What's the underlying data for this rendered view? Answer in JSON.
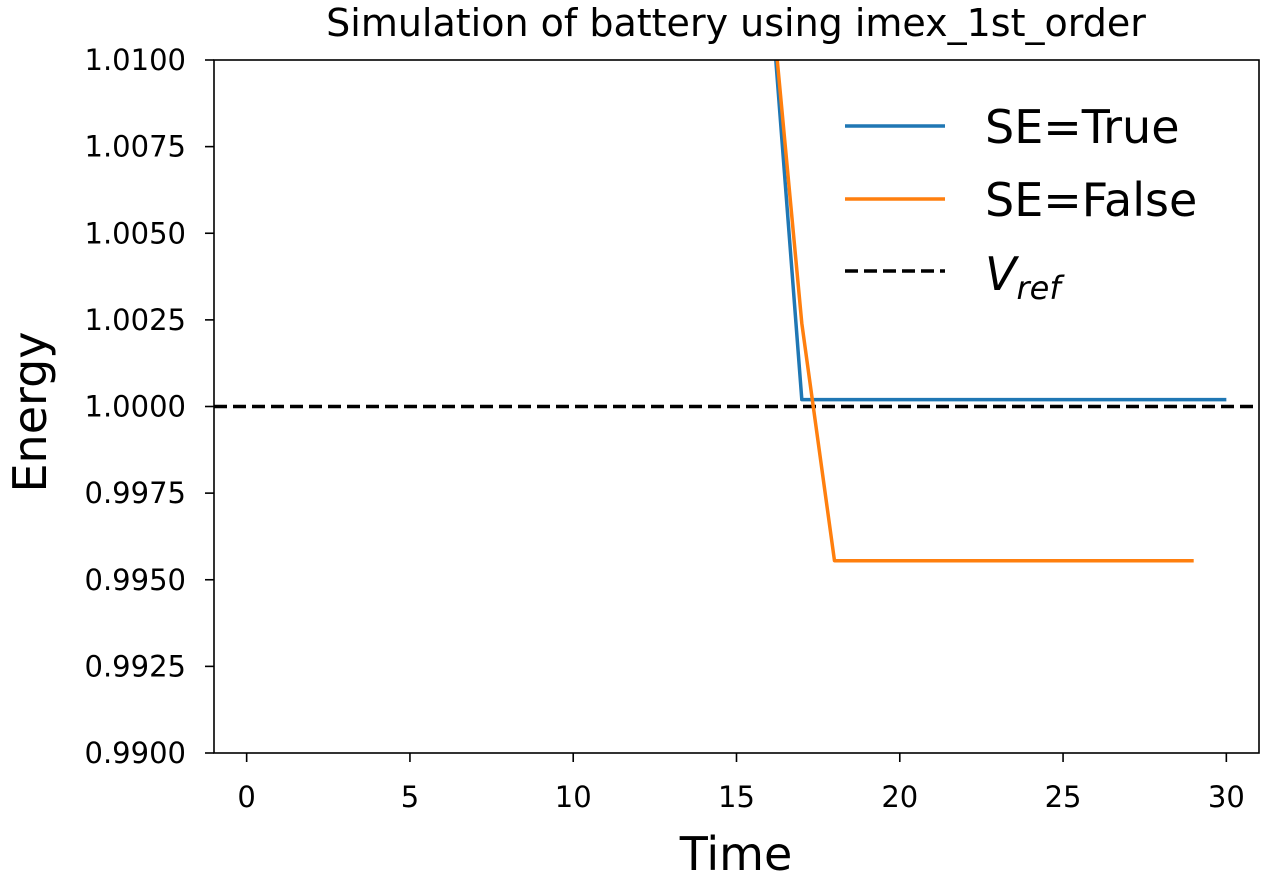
{
  "chart_data": {
    "type": "line",
    "title": "Simulation of battery using imex_1st_order",
    "xlabel": "Time",
    "ylabel": "Energy",
    "xlim": [
      -1,
      31
    ],
    "ylim": [
      0.99,
      1.01
    ],
    "xticks": [
      0,
      5,
      10,
      15,
      20,
      25,
      30
    ],
    "xtick_labels": [
      "0",
      "5",
      "10",
      "15",
      "20",
      "25",
      "30"
    ],
    "yticks": [
      0.99,
      0.9925,
      0.995,
      0.9975,
      1.0,
      1.0025,
      1.005,
      1.0075,
      1.01
    ],
    "ytick_labels": [
      "0.9900",
      "0.9925",
      "0.9950",
      "0.9975",
      "1.0000",
      "1.0025",
      "1.0050",
      "1.0075",
      "1.0100"
    ],
    "grid": false,
    "legend_position": "top-right",
    "series": [
      {
        "name": "SE=True",
        "color": "#1f77b4",
        "style": "solid",
        "x": [
          16.0,
          17.0,
          18,
          19,
          20,
          21,
          22,
          23,
          24,
          25,
          26,
          27,
          28,
          29,
          30
        ],
        "y": [
          1.0125,
          1.0002,
          1.0002,
          1.0002,
          1.0002,
          1.0002,
          1.0002,
          1.0002,
          1.0002,
          1.0002,
          1.0002,
          1.0002,
          1.0002,
          1.0002,
          1.0002
        ]
      },
      {
        "name": "SE=False",
        "color": "#ff7f0e",
        "style": "solid",
        "x": [
          16.0,
          17.0,
          18.0,
          19,
          20,
          21,
          22,
          23,
          24,
          25,
          26,
          27,
          28,
          29
        ],
        "y": [
          1.0125,
          1.0024,
          0.99555,
          0.99555,
          0.99555,
          0.99555,
          0.99555,
          0.99555,
          0.99555,
          0.99555,
          0.99555,
          0.99555,
          0.99555,
          0.99555
        ]
      }
    ],
    "reference_line": {
      "name": "V",
      "subscript": "ref",
      "y": 1.0,
      "color": "#000000",
      "style": "dashed"
    }
  }
}
